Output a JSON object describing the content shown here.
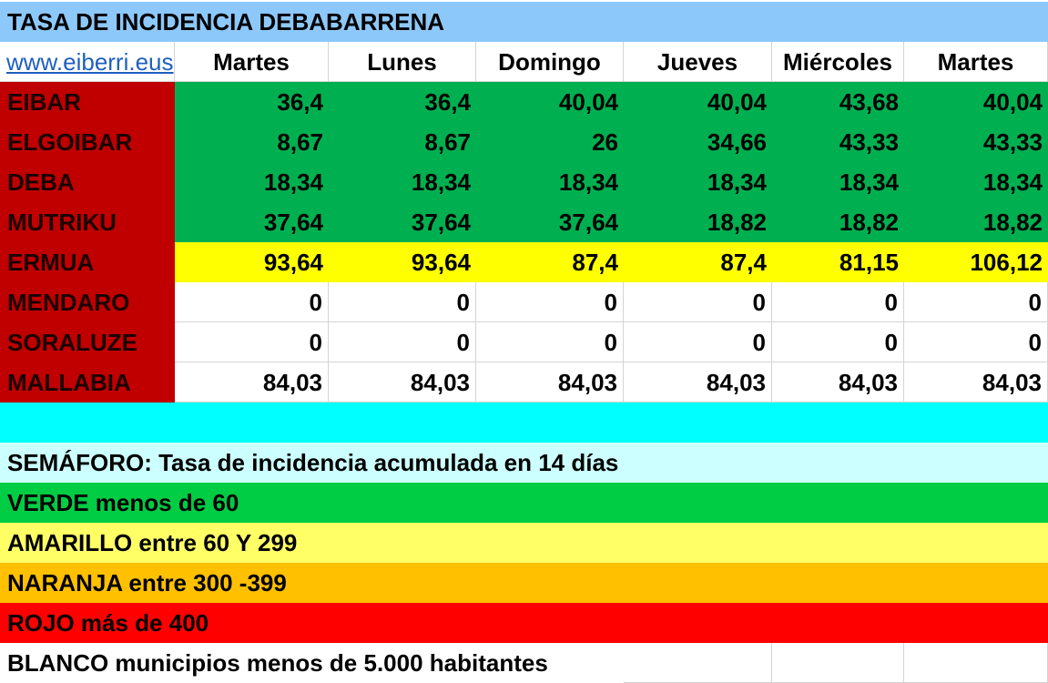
{
  "title": "TASA DE INCIDENCIA DEBABARRENA",
  "link": "www.eiberri.eus",
  "days": [
    "Martes",
    "Lunes",
    "Domingo",
    "Jueves",
    "Miércoles",
    "Martes"
  ],
  "rows": [
    {
      "name": "EIBAR",
      "values": [
        "36,4",
        "36,4",
        "40,04",
        "40,04",
        "43,68",
        "40,04"
      ]
    },
    {
      "name": "ELGOIBAR",
      "values": [
        "8,67",
        "8,67",
        "26",
        "34,66",
        "43,33",
        "43,33"
      ]
    },
    {
      "name": "DEBA",
      "values": [
        "18,34",
        "18,34",
        "18,34",
        "18,34",
        "18,34",
        "18,34"
      ]
    },
    {
      "name": "MUTRIKU",
      "values": [
        "37,64",
        "37,64",
        "37,64",
        "18,82",
        "18,82",
        "18,82"
      ]
    },
    {
      "name": "ERMUA",
      "values": [
        "93,64",
        "93,64",
        "87,4",
        "87,4",
        "81,15",
        "106,12"
      ]
    },
    {
      "name": "MENDARO",
      "values": [
        "0",
        "0",
        "0",
        "0",
        "0",
        "0"
      ]
    },
    {
      "name": "SORALUZE",
      "values": [
        "0",
        "0",
        "0",
        "0",
        "0",
        "0"
      ]
    },
    {
      "name": "MALLABIA",
      "values": [
        "84,03",
        "84,03",
        "84,03",
        "84,03",
        "84,03",
        "84,03"
      ]
    }
  ],
  "legend": {
    "semaforo": "SEMÁFORO:  Tasa de incidencia acumulada en 14 días",
    "verde": "VERDE menos de 60",
    "amarillo": "AMARILLO entre 60 Y 299",
    "naranja": "NARANJA entre 300 -399",
    "rojo": "ROJO más de 400",
    "blanco": "BLANCO municipios menos de 5.000 habitantes"
  },
  "colors": {
    "title_band": "#8dc8fa",
    "municipality": "#c00000",
    "green_cells": "#00b050",
    "yellow_cells": "#ffff00",
    "spacer_band": "#00ffff",
    "semaforo_band": "#ccffff",
    "verde": "#00cc44",
    "amarillo": "#ffff66",
    "naranja": "#ffc000",
    "rojo": "#ff0000",
    "blanco": "#ffffff"
  }
}
